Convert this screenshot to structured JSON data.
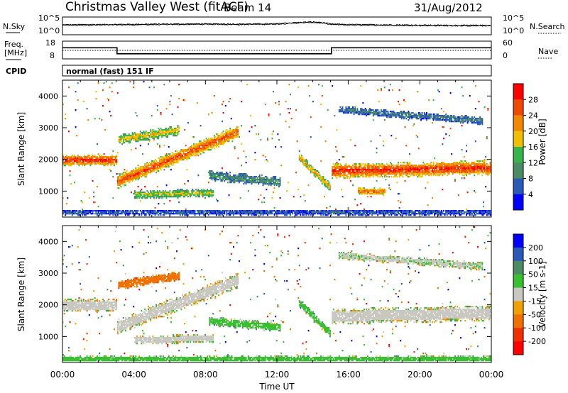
{
  "header": {
    "title": "Christmas Valley West (fitACF)",
    "beam": "Beam 14",
    "date": "31/Aug/2012"
  },
  "noise_panel": {
    "left_label": "N.Sky",
    "right_label": "N.Search",
    "left_ticks": [
      "10^5",
      "10^0"
    ],
    "right_ticks": [
      "10^5",
      "10^0"
    ]
  },
  "freq_panel": {
    "left_label_line1": "Freq.",
    "left_label_line2": "[MHz]",
    "right_label": "Nave",
    "left_ticks": [
      "18",
      "8"
    ],
    "right_ticks": [
      "60",
      "0"
    ]
  },
  "cpid_panel": {
    "label": "CPID",
    "text": "normal (fast) 151 IF"
  },
  "xaxis": {
    "title": "Time UT",
    "ticks": [
      "00:00",
      "04:00",
      "08:00",
      "12:00",
      "16:00",
      "20:00",
      "00:00"
    ]
  },
  "power_panel": {
    "ylabel": "Slant Range [km]",
    "yticks": [
      "1000",
      "2000",
      "3000",
      "4000"
    ],
    "colorbar_label": "Power [dB]",
    "colorbar_ticks": [
      "28",
      "24",
      "20",
      "16",
      "12",
      "8",
      "4"
    ],
    "colors": [
      "#0000ff",
      "#2a5ab8",
      "#4c8c64",
      "#38b54a",
      "#f0c000",
      "#f08800",
      "#f04a00",
      "#ff0000"
    ]
  },
  "velocity_panel": {
    "ylabel": "Slant Range [km]",
    "yticks": [
      "1000",
      "2000",
      "3000",
      "4000"
    ],
    "colorbar_label": "Velocity [m s-1]",
    "colorbar_ticks": [
      "200",
      "100",
      "50",
      "15",
      "-15",
      "-50",
      "-100",
      "-200"
    ],
    "colors": [
      "#0000ff",
      "#2a5ab8",
      "#4c8c64",
      "#38c030",
      "#c8c8c0",
      "#f0a000",
      "#f07000",
      "#f03000",
      "#ff0000"
    ]
  },
  "chart_data": [
    {
      "type": "line",
      "title": "N.Sky / N.Search",
      "x_unit": "hours UT",
      "y_scale": "log",
      "ylim": [
        1,
        100000
      ],
      "series": [
        {
          "name": "N.Sky",
          "x": [
            0,
            2,
            4,
            6,
            8,
            10,
            12,
            13,
            14,
            15,
            16,
            18,
            20,
            22,
            24
          ],
          "values": [
            800,
            1000,
            1200,
            1500,
            1800,
            1500,
            2000,
            5000,
            9000,
            1500,
            1000,
            800,
            600,
            500,
            500
          ]
        }
      ]
    },
    {
      "type": "line",
      "title": "Freq. / Nave",
      "x_unit": "hours UT",
      "ylim": [
        8,
        18
      ],
      "series": [
        {
          "name": "Freq.",
          "x": [
            0,
            3.05,
            3.05,
            15.05,
            15.05,
            24
          ],
          "values": [
            14.5,
            14.5,
            10.5,
            10.5,
            14.5,
            14.5
          ]
        }
      ]
    },
    {
      "type": "heatmap",
      "title": "Power [dB]",
      "x_unit": "hours UT",
      "y_unit": "km",
      "xlim": [
        0,
        24
      ],
      "ylim": [
        180,
        4500
      ],
      "zlim": [
        0,
        30
      ],
      "features": [
        {
          "kind": "band",
          "t0": 0,
          "t1": 3,
          "r0": 2000,
          "r1": 2000,
          "thickness": 300,
          "power": 27
        },
        {
          "kind": "band",
          "t0": 3,
          "t1": 9.8,
          "r0": 1300,
          "r1": 2900,
          "thickness": 360,
          "power": 25
        },
        {
          "kind": "band",
          "t0": 3.1,
          "t1": 6.5,
          "r0": 2650,
          "r1": 2950,
          "thickness": 260,
          "power": 18
        },
        {
          "kind": "band",
          "t0": 4,
          "t1": 8.4,
          "r0": 900,
          "r1": 950,
          "thickness": 220,
          "power": 16
        },
        {
          "kind": "band",
          "t0": 8.2,
          "t1": 12.2,
          "r0": 1500,
          "r1": 1300,
          "thickness": 260,
          "power": 10
        },
        {
          "kind": "band",
          "t0": 13.2,
          "t1": 15,
          "r0": 2100,
          "r1": 1100,
          "thickness": 220,
          "power": 20
        },
        {
          "kind": "band",
          "t0": 15.05,
          "t1": 24,
          "r0": 1650,
          "r1": 1750,
          "thickness": 380,
          "power": 27
        },
        {
          "kind": "band",
          "t0": 16.5,
          "t1": 18,
          "r0": 1000,
          "r1": 1000,
          "thickness": 180,
          "power": 24
        },
        {
          "kind": "band",
          "t0": 15.4,
          "t1": 23.5,
          "r0": 3600,
          "r1": 3250,
          "thickness": 200,
          "power": 8
        },
        {
          "kind": "band",
          "t0": 0,
          "t1": 24,
          "r0": 320,
          "r1": 320,
          "thickness": 150,
          "power": 6
        }
      ]
    },
    {
      "type": "heatmap",
      "title": "Velocity [m s-1]",
      "x_unit": "hours UT",
      "y_unit": "km",
      "xlim": [
        0,
        24
      ],
      "ylim": [
        180,
        4500
      ],
      "zlim": [
        -200,
        200
      ],
      "features": [
        {
          "kind": "band",
          "t0": 0,
          "t1": 3,
          "r0": 2000,
          "r1": 2000,
          "thickness": 320,
          "velocity": 0
        },
        {
          "kind": "band",
          "t0": 3,
          "t1": 9.8,
          "r0": 1300,
          "r1": 2800,
          "thickness": 380,
          "velocity": 0
        },
        {
          "kind": "band",
          "t0": 3.1,
          "t1": 6.5,
          "r0": 2650,
          "r1": 2950,
          "thickness": 240,
          "velocity": -60
        },
        {
          "kind": "band",
          "t0": 4,
          "t1": 8.4,
          "r0": 900,
          "r1": 950,
          "thickness": 220,
          "velocity": 0
        },
        {
          "kind": "band",
          "t0": 8.2,
          "t1": 12.2,
          "r0": 1500,
          "r1": 1300,
          "thickness": 240,
          "velocity": 40
        },
        {
          "kind": "band",
          "t0": 13.2,
          "t1": 15,
          "r0": 2100,
          "r1": 1100,
          "thickness": 220,
          "velocity": 40
        },
        {
          "kind": "band",
          "t0": 15.05,
          "t1": 24,
          "r0": 1650,
          "r1": 1750,
          "thickness": 400,
          "velocity": 0
        },
        {
          "kind": "band",
          "t0": 15.4,
          "t1": 23.5,
          "r0": 3600,
          "r1": 3250,
          "thickness": 200,
          "velocity": 10
        },
        {
          "kind": "band",
          "t0": 0,
          "t1": 24,
          "r0": 300,
          "r1": 300,
          "thickness": 160,
          "velocity": 30
        }
      ]
    }
  ]
}
